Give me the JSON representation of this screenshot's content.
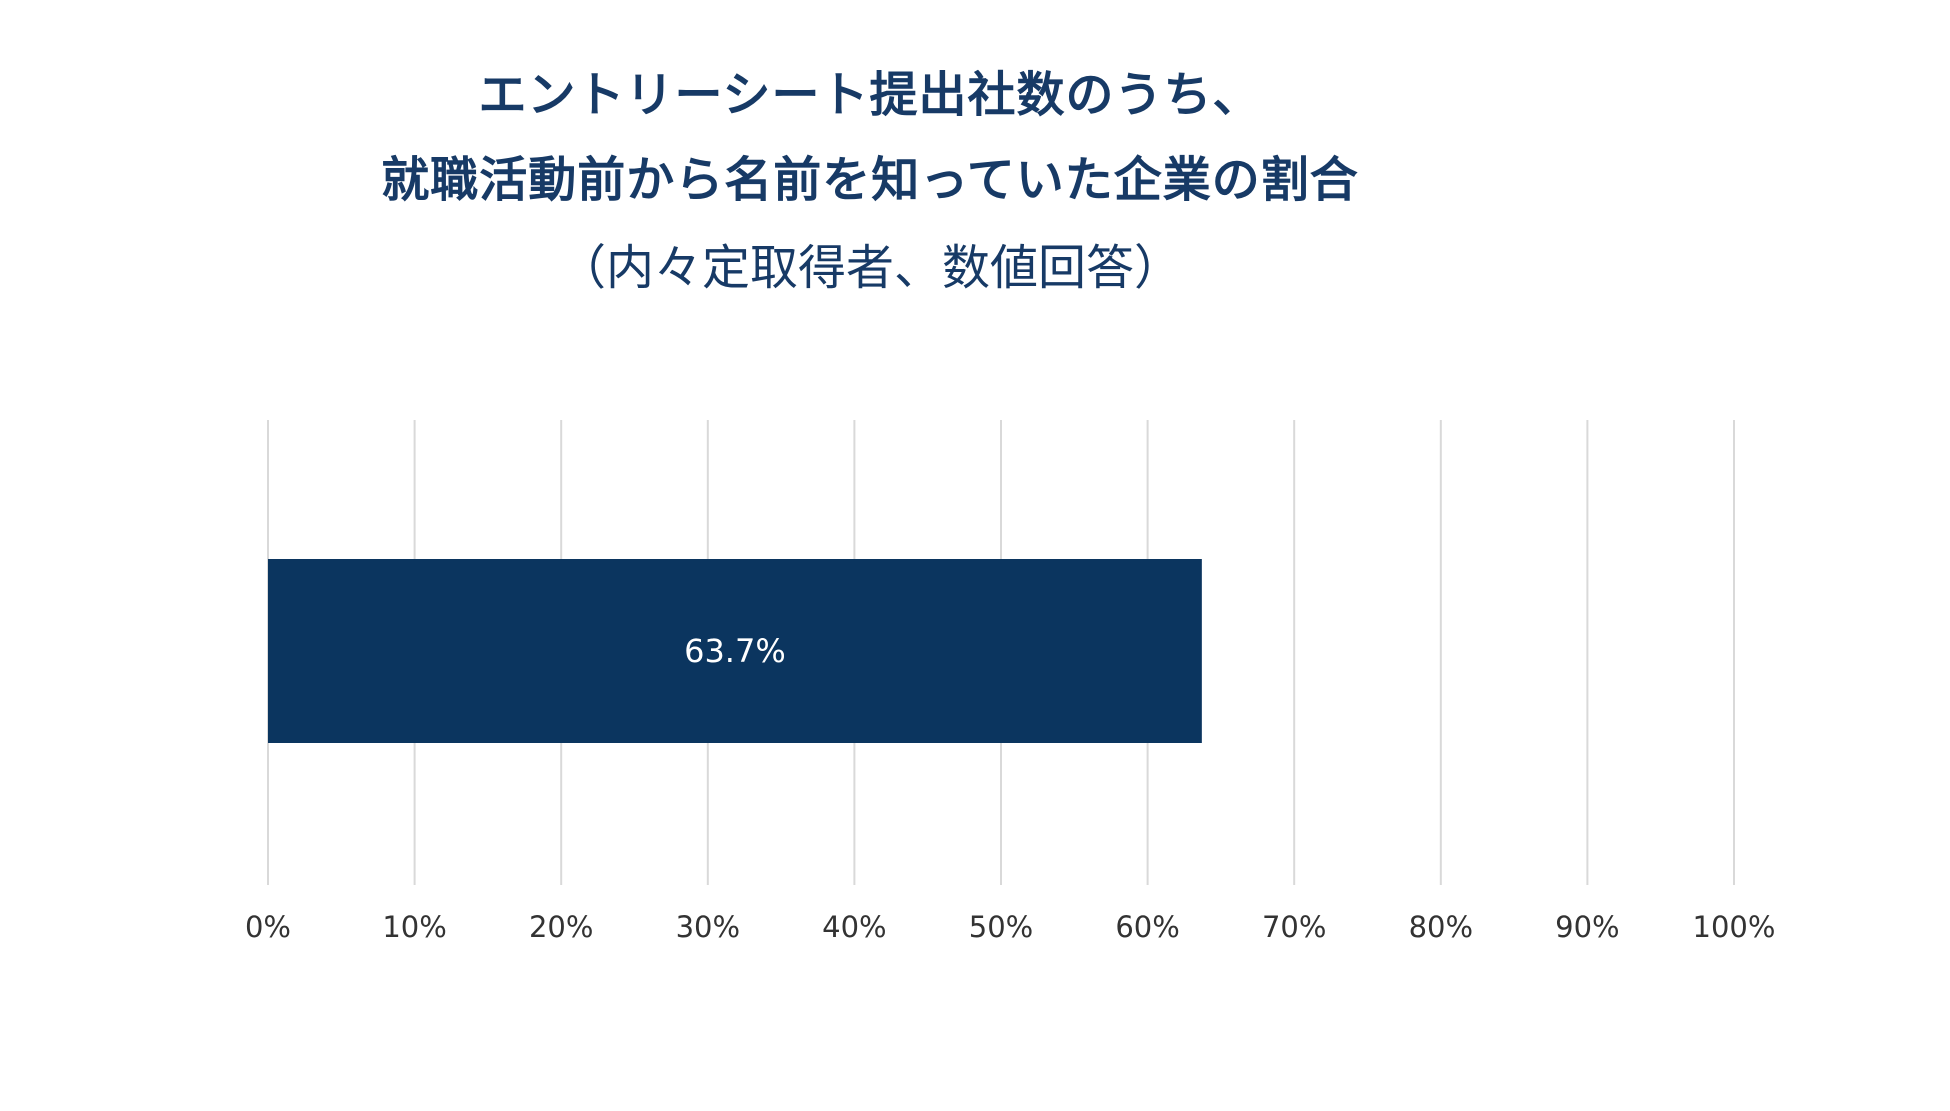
{
  "chart_data": {
    "type": "bar",
    "orientation": "horizontal",
    "title_lines": [
      "エントリーシート提出社数のうち、",
      "就職活動前から名前を知っていた企業の割合"
    ],
    "subtitle": "（内々定取得者、数値回答）",
    "categories": [
      ""
    ],
    "values": [
      63.7
    ],
    "data_labels": [
      "63.7%"
    ],
    "xlim": [
      0,
      100
    ],
    "x_ticks": [
      0,
      10,
      20,
      30,
      40,
      50,
      60,
      70,
      80,
      90,
      100
    ],
    "x_tick_labels": [
      "0%",
      "10%",
      "20%",
      "30%",
      "40%",
      "50%",
      "60%",
      "70%",
      "80%",
      "90%",
      "100%"
    ],
    "grid": "vertical",
    "legend": "none",
    "colors": {
      "bar": "#0b355f",
      "title": "#173a66",
      "grid": "#d9d9d9",
      "tick_text": "#333333",
      "bar_text": "#ffffff"
    }
  }
}
